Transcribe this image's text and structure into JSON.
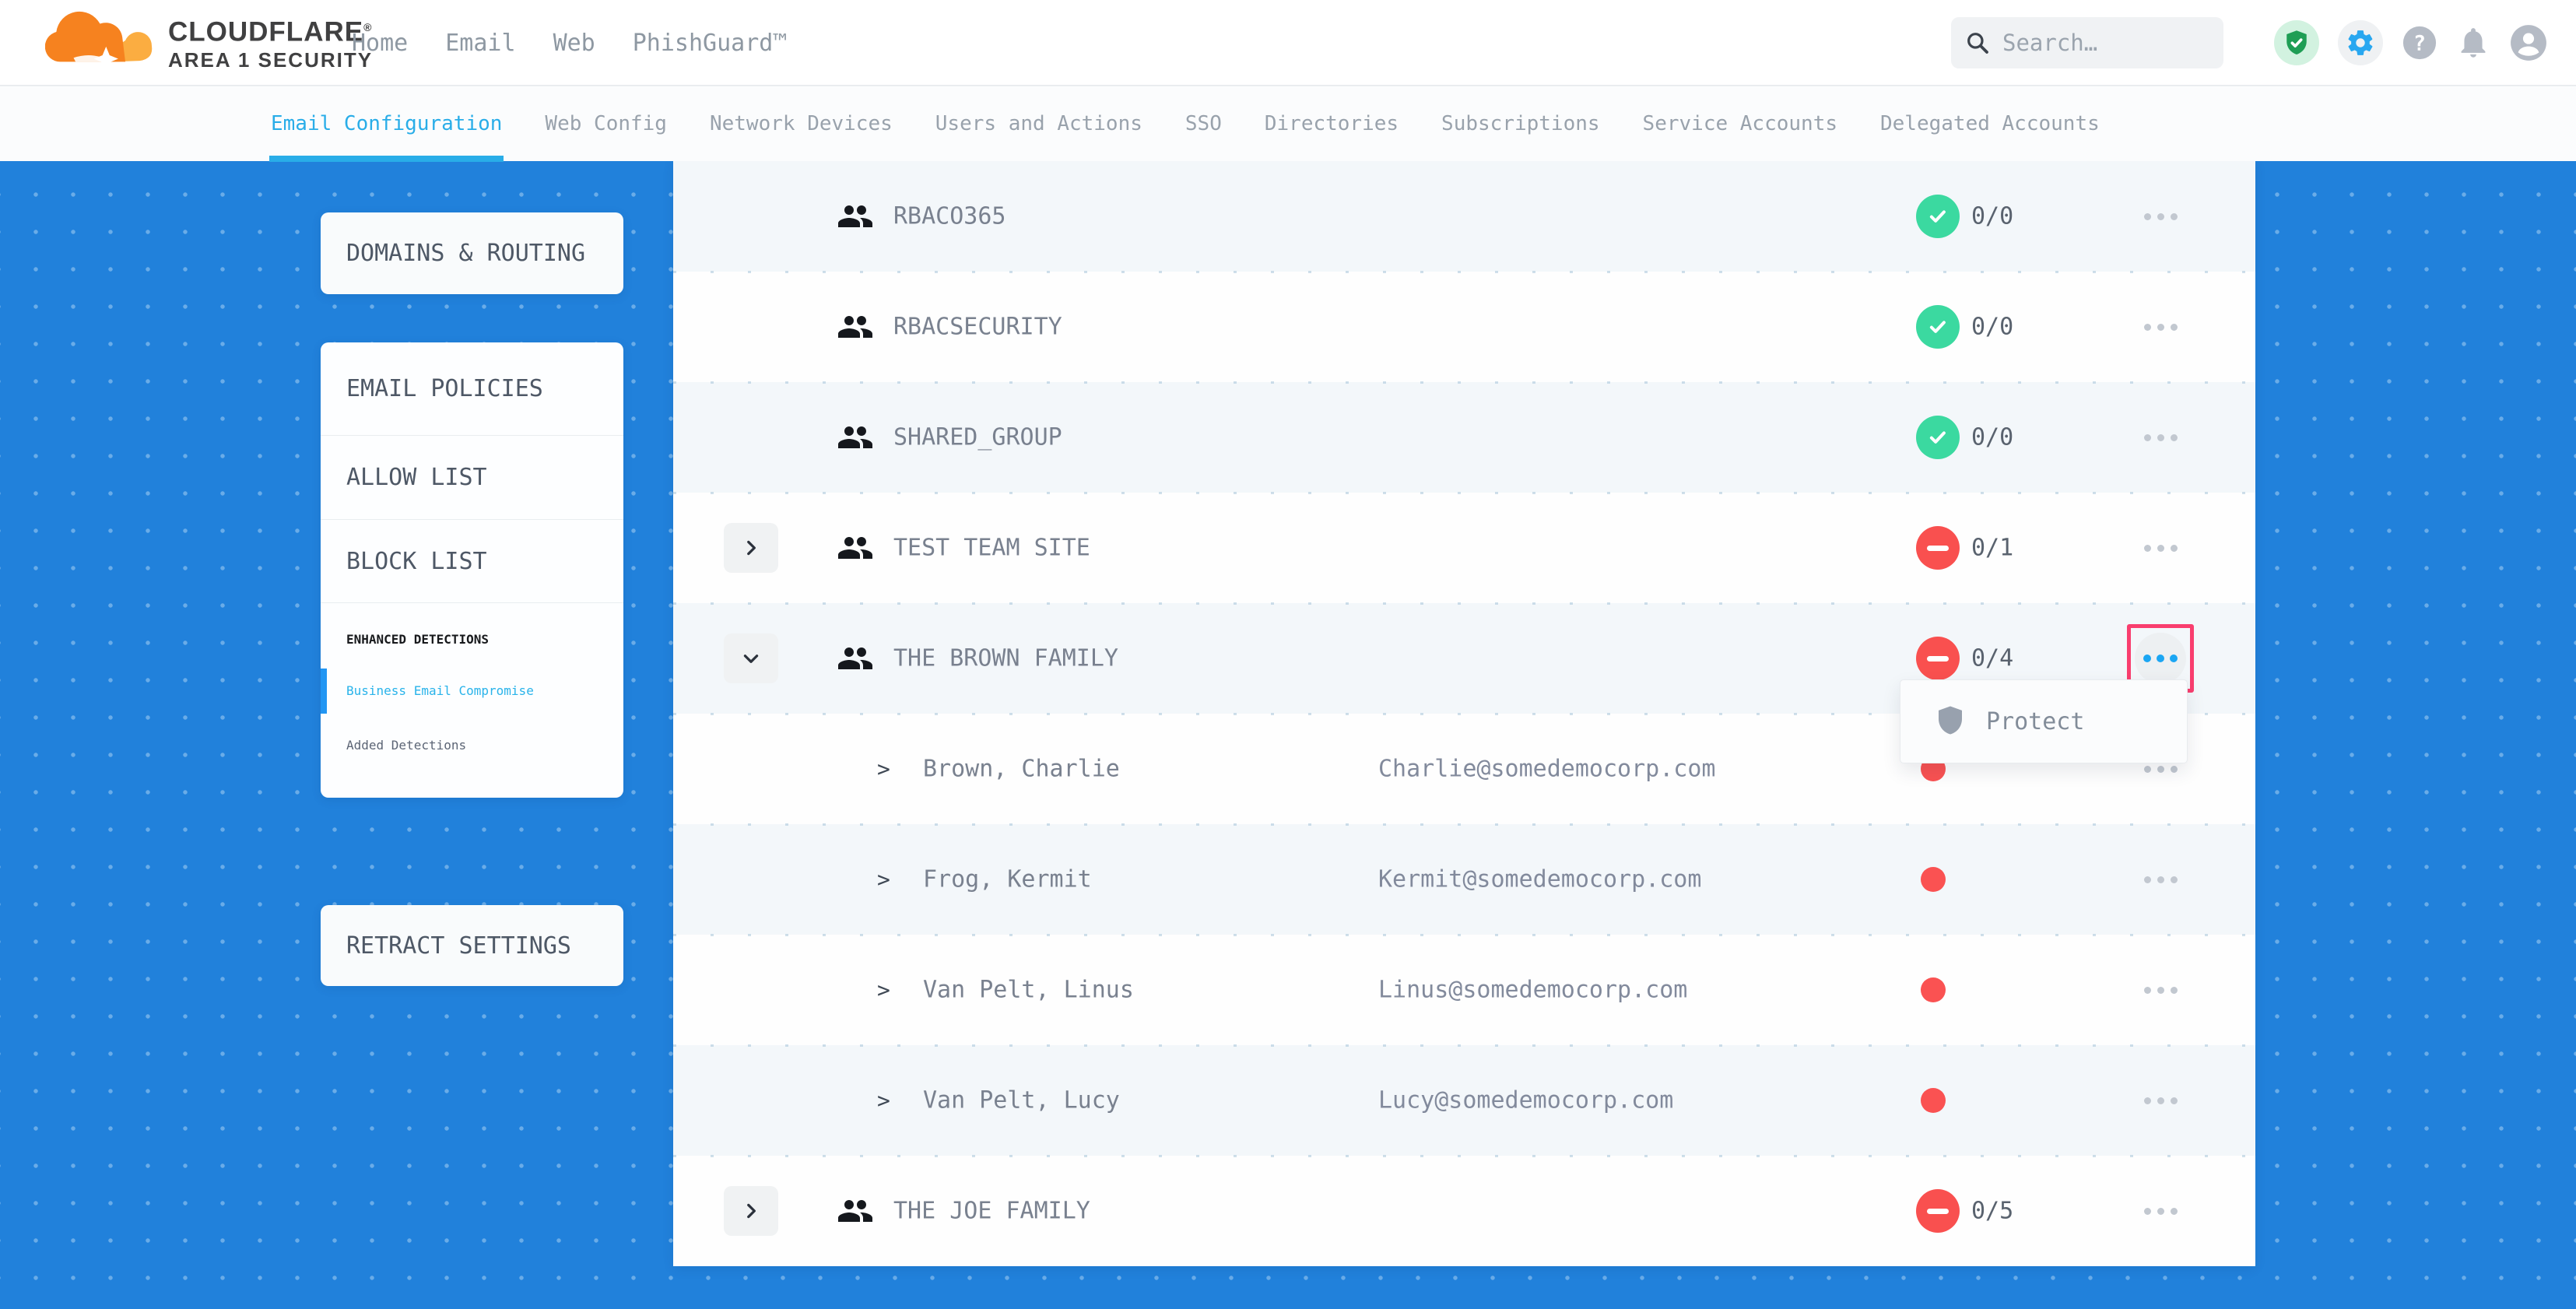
{
  "brand": {
    "name": "CLOUDFLARE",
    "registered": "®",
    "subtitle": "AREA 1 SECURITY"
  },
  "topnav": {
    "links": [
      "Home",
      "Email",
      "Web",
      "PhishGuard™"
    ],
    "search_placeholder": "Search…",
    "icons": [
      "shield-check-icon",
      "gear-icon",
      "help-icon",
      "bell-icon",
      "user-icon"
    ]
  },
  "subnav": {
    "tabs": [
      {
        "label": "Email Configuration",
        "active": true
      },
      {
        "label": "Web Config",
        "active": false
      },
      {
        "label": "Network Devices",
        "active": false
      },
      {
        "label": "Users and Actions",
        "active": false
      },
      {
        "label": "SSO",
        "active": false
      },
      {
        "label": "Directories",
        "active": false
      },
      {
        "label": "Subscriptions",
        "active": false
      },
      {
        "label": "Service Accounts",
        "active": false
      },
      {
        "label": "Delegated Accounts",
        "active": false
      }
    ]
  },
  "sidebar": {
    "card1": {
      "title": "DOMAINS & ROUTING"
    },
    "card2": {
      "items": [
        "EMAIL POLICIES",
        "ALLOW LIST",
        "BLOCK LIST"
      ],
      "section_title": "ENHANCED DETECTIONS",
      "sub_items": [
        {
          "label": "Business Email Compromise",
          "active": true
        },
        {
          "label": "Added Detections",
          "active": false
        }
      ]
    },
    "card3": {
      "title": "RETRACT SETTINGS"
    }
  },
  "table": {
    "rows": [
      {
        "kind": "group",
        "name": "RBACO365",
        "status": "protected",
        "count": "0/0",
        "expandable": false,
        "expanded": false,
        "menu_highlighted": false
      },
      {
        "kind": "group",
        "name": "RBACSECURITY",
        "status": "protected",
        "count": "0/0",
        "expandable": false,
        "expanded": false,
        "menu_highlighted": false
      },
      {
        "kind": "group",
        "name": "SHARED_GROUP",
        "status": "protected",
        "count": "0/0",
        "expandable": false,
        "expanded": false,
        "menu_highlighted": false
      },
      {
        "kind": "group",
        "name": "TEST TEAM SITE",
        "status": "unprotected",
        "count": "0/1",
        "expandable": true,
        "expanded": false,
        "menu_highlighted": false
      },
      {
        "kind": "group",
        "name": "THE BROWN FAMILY",
        "status": "unprotected",
        "count": "0/4",
        "expandable": true,
        "expanded": true,
        "menu_highlighted": true
      },
      {
        "kind": "member",
        "name": "Brown, Charlie",
        "email": "Charlie@somedemocorp.com",
        "status": "unprotected"
      },
      {
        "kind": "member",
        "name": "Frog, Kermit",
        "email": "Kermit@somedemocorp.com",
        "status": "unprotected"
      },
      {
        "kind": "member",
        "name": "Van Pelt, Linus",
        "email": "Linus@somedemocorp.com",
        "status": "unprotected"
      },
      {
        "kind": "member",
        "name": "Van Pelt, Lucy",
        "email": "Lucy@somedemocorp.com",
        "status": "unprotected"
      },
      {
        "kind": "group",
        "name": "THE JOE FAMILY",
        "status": "unprotected",
        "count": "0/5",
        "expandable": true,
        "expanded": false,
        "menu_highlighted": false
      }
    ]
  },
  "context_menu": {
    "items": [
      {
        "icon": "shield-icon",
        "label": "Protect"
      }
    ]
  },
  "colors": {
    "background_blue": "#2181db",
    "accent_blue": "#29ade8",
    "active_link_blue": "#29b3ea",
    "protected_green": "#3bd9a0",
    "unprotected_red": "#f9504f",
    "highlight_pink": "#f93e6e",
    "brand_orange": "#f6821f",
    "brand_orange_light": "#fbad41"
  }
}
